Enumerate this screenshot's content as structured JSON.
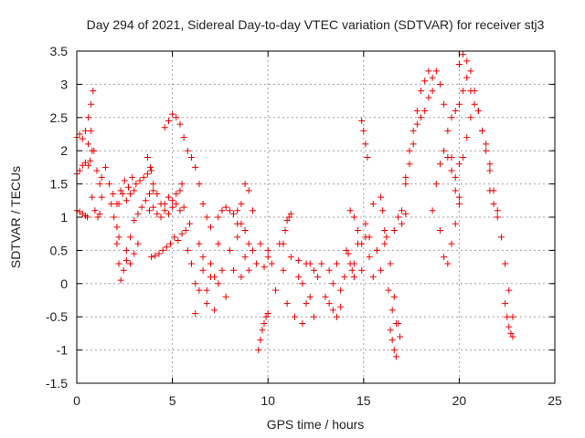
{
  "chart_data": {
    "type": "scatter",
    "title": "Day 294 of 2021, Sidereal Day-to-day VTEC variation (SDTVAR) for receiver stj3",
    "xlabel": "GPS time / hours",
    "ylabel": "SDTVAR / TECUs",
    "xlim": [
      0,
      25
    ],
    "ylim": [
      -1.5,
      3.5
    ],
    "xticks": [
      0,
      5,
      10,
      15,
      20,
      25
    ],
    "xtick_labels": [
      "0",
      "5",
      "10",
      "15",
      "20",
      "25"
    ],
    "yticks": [
      -1.5,
      -1,
      -0.5,
      0,
      0.5,
      1,
      1.5,
      2,
      2.5,
      3,
      3.5
    ],
    "ytick_labels": [
      "-1.5",
      "-1",
      "-0.5",
      "0",
      "0.5",
      "1",
      "1.5",
      "2",
      "2.5",
      "3",
      "3.5"
    ],
    "grid": true,
    "marker": "+",
    "colors": {
      "series": "#ee0000",
      "grid": "#a0a0a0"
    },
    "series": [
      {
        "name": "stj3",
        "segments": [
          {
            "x": [
              0.0,
              0.15,
              0.3,
              0.45,
              0.6,
              0.75,
              0.85
            ],
            "y": [
              2.2,
              2.25,
              2.18,
              2.3,
              2.5,
              2.7,
              2.9
            ]
          },
          {
            "x": [
              0.0,
              0.15,
              0.3,
              0.45,
              0.6,
              0.7,
              0.8
            ],
            "y": [
              1.65,
              1.7,
              1.78,
              1.82,
              1.78,
              1.85,
              2.0
            ]
          },
          {
            "x": [
              0.0,
              0.15,
              0.3,
              0.45,
              0.55
            ],
            "y": [
              1.1,
              1.08,
              1.05,
              1.02,
              1.0
            ]
          },
          {
            "x": [
              0.6,
              0.75,
              0.9,
              1.05,
              1.2,
              1.3
            ],
            "y": [
              2.1,
              2.3,
              2.0,
              1.7,
              1.5,
              1.3
            ]
          },
          {
            "x": [
              0.8,
              0.95,
              1.1,
              1.2
            ],
            "y": [
              1.3,
              1.1,
              1.0,
              1.05
            ]
          },
          {
            "x": [
              1.3,
              1.5,
              1.7,
              1.9,
              2.1,
              2.3,
              2.5,
              2.7,
              2.9,
              3.1,
              3.3,
              3.5,
              3.7,
              3.9
            ],
            "y": [
              1.6,
              1.75,
              1.5,
              1.35,
              1.2,
              1.4,
              1.55,
              1.45,
              1.6,
              1.5,
              1.55,
              1.6,
              1.65,
              1.7
            ]
          },
          {
            "x": [
              1.8,
              1.95,
              2.1,
              2.2
            ],
            "y": [
              1.2,
              1.0,
              0.85,
              0.7
            ]
          },
          {
            "x": [
              2.1,
              2.2,
              2.3,
              2.45,
              2.6,
              2.8,
              3.0,
              3.2
            ],
            "y": [
              0.6,
              0.3,
              0.05,
              0.2,
              0.35,
              0.3,
              0.45,
              0.6
            ]
          },
          {
            "x": [
              2.6,
              2.8,
              3.0,
              3.2,
              3.4,
              3.6,
              3.8,
              4.0
            ],
            "y": [
              0.5,
              0.7,
              0.95,
              1.05,
              1.15,
              1.25,
              1.35,
              1.4
            ]
          },
          {
            "x": [
              2.2,
              2.4,
              2.6,
              2.8,
              3.0
            ],
            "y": [
              1.2,
              1.35,
              1.25,
              1.35,
              1.4
            ]
          },
          {
            "x": [
              3.7,
              3.85,
              4.0,
              4.2,
              4.4,
              4.6,
              4.8,
              5.0,
              5.2,
              5.4,
              5.5
            ],
            "y": [
              1.9,
              1.75,
              1.5,
              1.35,
              1.2,
              1.2,
              1.3,
              1.25,
              1.35,
              1.4,
              1.5
            ]
          },
          {
            "x": [
              3.8,
              4.0,
              4.2,
              4.4,
              4.6,
              4.8,
              5.0,
              5.2,
              5.4,
              5.6
            ],
            "y": [
              1.1,
              1.15,
              1.05,
              1.0,
              1.1,
              1.05,
              1.15,
              1.2,
              1.1,
              1.15
            ]
          },
          {
            "x": [
              4.6,
              4.8,
              5.0,
              5.2,
              5.4,
              5.6,
              5.8
            ],
            "y": [
              2.35,
              2.45,
              2.55,
              2.5,
              2.4,
              2.2,
              2.0
            ]
          },
          {
            "x": [
              3.9,
              4.1,
              4.3,
              4.5,
              4.7,
              4.9,
              5.1,
              5.3,
              5.5,
              5.7,
              5.9
            ],
            "y": [
              0.4,
              0.42,
              0.45,
              0.5,
              0.55,
              0.6,
              0.7,
              0.65,
              0.75,
              0.8,
              0.9
            ]
          },
          {
            "x": [
              5.8,
              6.0,
              6.2,
              6.4,
              6.6,
              6.8,
              7.0,
              7.2,
              7.4,
              7.6,
              7.8,
              8.0,
              8.2,
              8.4,
              8.6,
              8.8,
              9.0,
              9.2,
              9.4,
              9.6,
              9.8,
              10.0
            ],
            "y": [
              0.5,
              0.3,
              0.0,
              0.6,
              0.4,
              -0.1,
              0.3,
              0.1,
              0.6,
              0.2,
              -0.2,
              0.5,
              0.2,
              0.7,
              0.1,
              0.4,
              0.2,
              0.5,
              0.3,
              0.6,
              0.25,
              0.4
            ]
          },
          {
            "x": [
              6.0,
              6.2,
              6.4,
              6.6,
              6.8,
              7.0
            ],
            "y": [
              1.9,
              1.75,
              1.5,
              1.2,
              1.0,
              0.85
            ]
          },
          {
            "x": [
              6.2,
              6.4,
              6.6,
              6.8,
              7.0,
              7.2,
              7.4
            ],
            "y": [
              -0.45,
              -0.1,
              0.2,
              -0.3,
              0.1,
              -0.4,
              0.0
            ]
          },
          {
            "x": [
              7.4,
              7.6,
              7.8,
              8.0,
              8.2
            ],
            "y": [
              1.0,
              1.1,
              1.15,
              1.1,
              1.05
            ]
          },
          {
            "x": [
              8.4,
              8.6,
              8.8,
              9.0
            ],
            "y": [
              1.1,
              0.9,
              0.8,
              0.6
            ]
          },
          {
            "x": [
              8.4,
              8.6,
              8.8,
              9.0,
              9.2
            ],
            "y": [
              0.9,
              1.2,
              1.5,
              1.4,
              1.1
            ]
          },
          {
            "x": [
              9.5,
              9.6,
              9.7,
              9.8,
              9.9,
              10.0
            ],
            "y": [
              -1.0,
              -0.85,
              -0.7,
              -0.6,
              -0.5,
              -0.45
            ]
          },
          {
            "x": [
              10.0,
              10.2,
              10.4,
              10.6,
              10.8,
              11.0,
              11.2,
              11.4,
              11.6,
              11.8,
              12.0,
              12.2,
              12.4
            ],
            "y": [
              0.5,
              0.3,
              -0.1,
              0.6,
              0.2,
              -0.3,
              0.4,
              -0.5,
              0.1,
              -0.6,
              0.3,
              -0.2,
              0.2
            ]
          },
          {
            "x": [
              10.8,
              10.9,
              11.0,
              11.1,
              11.2
            ],
            "y": [
              0.6,
              0.8,
              0.95,
              1.0,
              1.05
            ]
          },
          {
            "x": [
              11.6,
              11.8,
              12.0,
              12.2,
              12.4,
              12.6,
              12.8,
              13.0,
              13.2,
              13.4,
              13.6,
              13.8,
              14.0
            ],
            "y": [
              0.35,
              0.0,
              -0.3,
              0.3,
              -0.5,
              0.1,
              0.3,
              -0.2,
              0.2,
              0.0,
              0.3,
              -0.1,
              0.1
            ]
          },
          {
            "x": [
              13.2,
              13.4,
              13.6,
              13.8
            ],
            "y": [
              -0.3,
              -0.4,
              -0.5,
              -0.35
            ]
          },
          {
            "x": [
              14.1,
              14.2,
              14.3,
              14.4,
              14.5
            ],
            "y": [
              0.5,
              0.45,
              0.3,
              0.2,
              0.1
            ]
          },
          {
            "x": [
              14.3,
              14.5,
              14.7,
              14.9,
              15.1,
              15.3,
              15.5,
              15.7,
              15.9,
              16.1
            ],
            "y": [
              1.1,
              1.0,
              0.8,
              0.6,
              0.9,
              0.7,
              1.2,
              0.5,
              1.3,
              0.8
            ]
          },
          {
            "x": [
              14.5,
              14.7,
              14.9,
              15.1,
              15.3,
              15.5,
              15.7,
              15.9,
              16.1,
              16.3,
              16.5,
              16.7,
              16.9
            ],
            "y": [
              0.3,
              0.6,
              0.2,
              0.7,
              0.4,
              0.1,
              0.5,
              0.2,
              0.6,
              -0.1,
              -0.4,
              -0.6,
              -0.8
            ]
          },
          {
            "x": [
              14.9,
              15.0,
              15.1,
              15.2
            ],
            "y": [
              2.45,
              2.3,
              2.1,
              1.9
            ]
          },
          {
            "x": [
              16.0,
              16.2,
              16.4,
              16.6,
              16.8
            ],
            "y": [
              1.1,
              0.7,
              0.3,
              -0.2,
              -0.6
            ]
          },
          {
            "x": [
              16.4,
              16.5,
              16.6,
              16.7
            ],
            "y": [
              -0.7,
              -0.85,
              -1.0,
              -1.1
            ]
          },
          {
            "x": [
              16.6,
              16.8,
              17.0,
              17.2
            ],
            "y": [
              0.8,
              1.0,
              1.1,
              1.05
            ]
          },
          {
            "x": [
              17.0,
              17.2,
              17.4,
              17.6,
              17.8,
              18.0,
              18.2,
              18.4
            ],
            "y": [
              0.9,
              1.6,
              2.0,
              2.3,
              2.6,
              2.9,
              3.05,
              3.2
            ]
          },
          {
            "x": [
              17.2,
              17.4,
              17.6,
              17.8,
              18.0,
              18.2,
              18.4,
              18.6
            ],
            "y": [
              1.5,
              1.8,
              2.1,
              2.4,
              2.5,
              2.6,
              2.8,
              2.9
            ]
          },
          {
            "x": [
              18.6,
              18.8,
              19.0,
              19.2,
              19.4,
              19.6,
              19.8,
              20.0
            ],
            "y": [
              3.1,
              3.2,
              3.0,
              2.7,
              2.3,
              1.9,
              1.6,
              1.3
            ]
          },
          {
            "x": [
              18.6,
              18.8,
              19.0,
              19.2,
              19.4,
              19.6,
              19.8
            ],
            "y": [
              1.1,
              1.5,
              1.8,
              2.0,
              1.9,
              1.7,
              1.4
            ]
          },
          {
            "x": [
              19.0,
              19.2,
              19.4,
              19.6,
              19.8,
              20.0
            ],
            "y": [
              0.8,
              0.4,
              0.3,
              0.6,
              0.9,
              1.2
            ]
          },
          {
            "x": [
              19.6,
              19.8,
              20.0,
              20.2,
              20.4
            ],
            "y": [
              2.5,
              2.6,
              2.7,
              2.9,
              3.1
            ]
          },
          {
            "x": [
              20.0,
              20.2,
              20.4,
              20.6,
              20.8,
              21.0,
              21.2,
              21.4,
              21.6,
              21.8,
              22.0
            ],
            "y": [
              1.8,
              1.9,
              2.2,
              2.5,
              2.9,
              2.6,
              2.3,
              2.0,
              1.7,
              1.4,
              1.1
            ]
          },
          {
            "x": [
              20.0,
              20.2,
              20.4,
              20.6
            ],
            "y": [
              3.3,
              3.45,
              3.35,
              3.2
            ]
          },
          {
            "x": [
              20.6,
              20.8,
              21.0,
              21.2,
              21.4,
              21.6
            ],
            "y": [
              2.9,
              2.7,
              2.6,
              2.3,
              2.1,
              1.8
            ]
          },
          {
            "x": [
              21.6,
              21.8,
              22.0,
              22.2,
              22.4,
              22.6,
              22.8
            ],
            "y": [
              1.4,
              1.2,
              1.0,
              0.7,
              0.3,
              -0.1,
              -0.5
            ]
          },
          {
            "x": [
              22.4,
              22.5,
              22.6,
              22.7,
              22.8
            ],
            "y": [
              -0.3,
              -0.5,
              -0.65,
              -0.75,
              -0.8
            ]
          }
        ]
      }
    ]
  }
}
